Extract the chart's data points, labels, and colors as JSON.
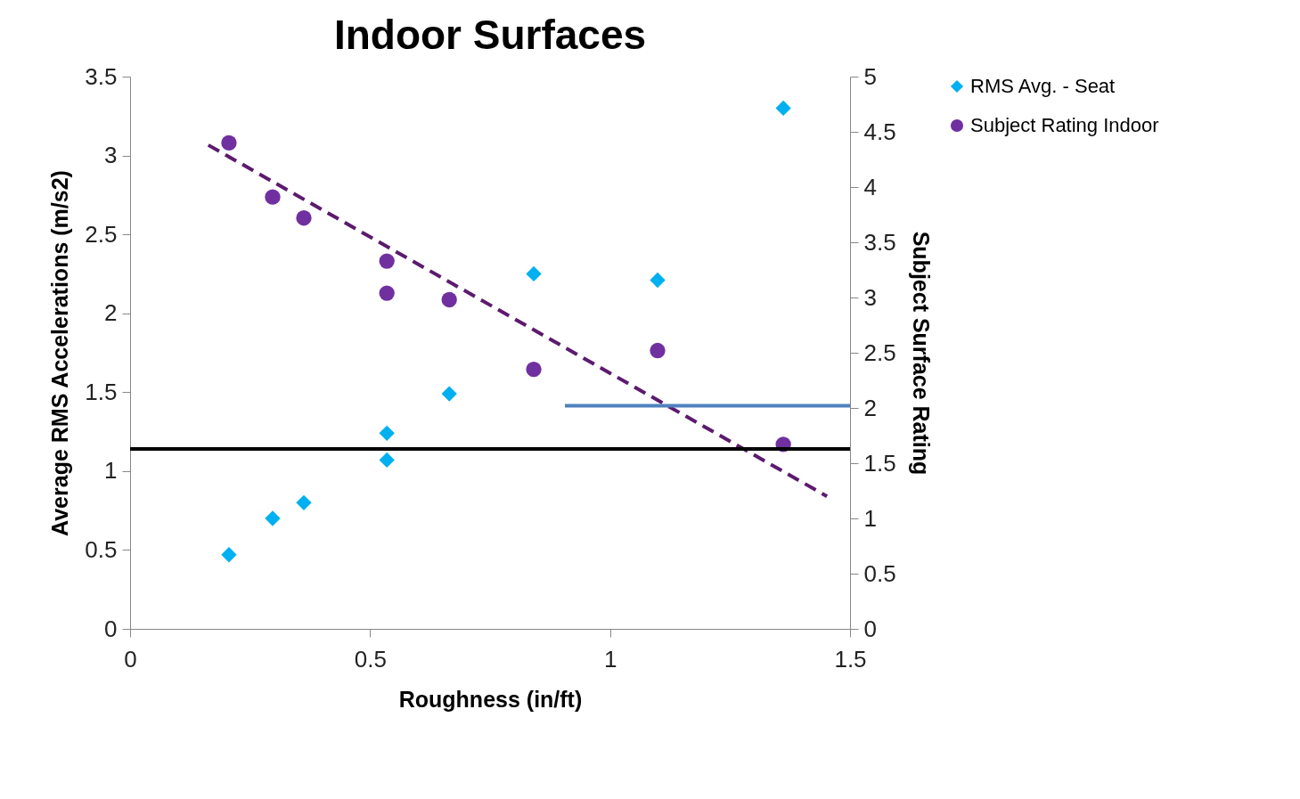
{
  "chart_data": {
    "type": "scatter",
    "title": "Indoor Surfaces",
    "xlabel": "Roughness (in/ft)",
    "ylabel": "Average RMS Accelerations (m/s2)",
    "y2label": "Subject Surface Rating",
    "xlim": [
      0,
      1.5
    ],
    "xticks": [
      0,
      0.5,
      1,
      1.5
    ],
    "ylim": [
      0,
      3.5
    ],
    "yticks": [
      0,
      0.5,
      1,
      1.5,
      2,
      2.5,
      3,
      3.5
    ],
    "y2lim": [
      0,
      5
    ],
    "y2ticks": [
      0,
      0.5,
      1,
      1.5,
      2,
      2.5,
      3,
      3.5,
      4,
      4.5,
      5
    ],
    "grid": false,
    "legend": "right",
    "series": [
      {
        "name": "RMS Avg. - Seat",
        "marker": "diamond",
        "color": "#00b0f0",
        "x": [
          0.206,
          0.297,
          0.362,
          0.535,
          0.535,
          0.665,
          0.841,
          1.099,
          1.361
        ],
        "values": [
          0.47,
          0.7,
          0.8,
          1.24,
          1.07,
          1.49,
          2.25,
          2.21,
          3.3
        ]
      },
      {
        "name": "Subject Rating  Indoor",
        "marker": "circle",
        "axis": "y2",
        "color": "#7030a0",
        "x": [
          0.206,
          0.297,
          0.362,
          0.535,
          0.535,
          0.665,
          0.841,
          1.099,
          1.361
        ],
        "values": [
          4.4,
          3.91,
          3.72,
          3.33,
          3.04,
          2.98,
          2.35,
          2.52,
          1.67
        ]
      },
      {
        "type": "line",
        "line_style": "dashed",
        "axis": "y2",
        "color": "#5c1a6e",
        "x": [
          0.163,
          1.452
        ],
        "values": [
          4.38,
          1.2
        ]
      },
      {
        "type": "line",
        "line_style": "solid",
        "axis": "y2",
        "color": "#4f81bd",
        "x": [
          0.906,
          1.5
        ],
        "values": [
          2.02,
          2.02
        ]
      }
    ],
    "ref_lines": [
      {
        "axis": "y",
        "value": 1.14,
        "color": "#000000"
      }
    ]
  }
}
